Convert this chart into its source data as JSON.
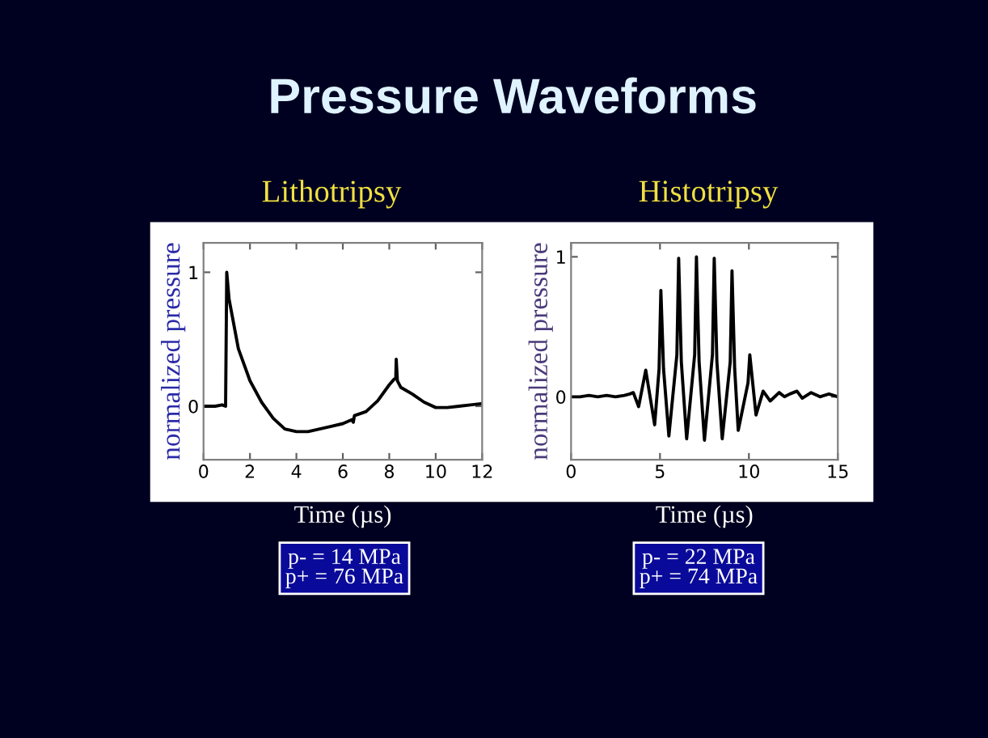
{
  "chart_data": [
    {
      "type": "line",
      "title": "Lithotripsy",
      "xlabel": "Time (µs)",
      "ylabel": "normalized pressure",
      "annotations": [
        "Pressure Waveforms",
        "p- = 14 MPa\np+ = 76 MPa"
      ],
      "xlim": [
        0,
        12
      ],
      "ylim": [
        -0.4,
        1.22
      ],
      "xticks": [
        0,
        2,
        4,
        6,
        8,
        10,
        12
      ],
      "yticks": [
        0,
        1
      ],
      "x": [
        0,
        0.5,
        0.8,
        0.95,
        1.0,
        1.1,
        1.5,
        2,
        2.5,
        3,
        3.5,
        4,
        4.5,
        5,
        5.5,
        6,
        6.4,
        6.45,
        6.5,
        7,
        7.5,
        8,
        8.2,
        8.28,
        8.3,
        8.35,
        8.5,
        9,
        9.5,
        10,
        10.5,
        11,
        11.5,
        12
      ],
      "series": [
        {
          "color": "#000000",
          "values": [
            0,
            0,
            0.01,
            0,
            1.0,
            0.8,
            0.43,
            0.19,
            0.03,
            -0.09,
            -0.17,
            -0.19,
            -0.19,
            -0.17,
            -0.15,
            -0.13,
            -0.1,
            -0.12,
            -0.07,
            -0.04,
            0.04,
            0.16,
            0.2,
            0.21,
            0.35,
            0.19,
            0.14,
            0.09,
            0.03,
            -0.01,
            -0.01,
            0,
            0.01,
            0.02
          ]
        }
      ]
    },
    {
      "type": "line",
      "title": "Histotripsy",
      "xlabel": "Time (µs)",
      "ylabel": "normalized pressure",
      "annotations": [
        "p- = 22 MPa\np+ = 74 MPa"
      ],
      "xlim": [
        0,
        15
      ],
      "ylim": [
        -0.45,
        1.1
      ],
      "xticks": [
        0,
        5,
        10,
        15
      ],
      "yticks": [
        0,
        1
      ],
      "x": [
        0,
        0.5,
        1,
        1.5,
        2,
        2.5,
        3,
        3.3,
        3.5,
        3.8,
        4.2,
        4.7,
        4.95,
        5.05,
        5.2,
        5.5,
        5.95,
        6.05,
        6.2,
        6.5,
        6.95,
        7.05,
        7.2,
        7.5,
        7.95,
        8.05,
        8.2,
        8.5,
        8.95,
        9.05,
        9.2,
        9.4,
        9.95,
        10.05,
        10.4,
        10.8,
        11.2,
        11.7,
        12,
        12.3,
        12.7,
        13,
        13.5,
        14,
        14.5,
        15
      ],
      "series": [
        {
          "color": "#000000",
          "values": [
            0,
            0,
            0.01,
            0,
            0.01,
            0,
            0.01,
            0.02,
            0.03,
            -0.07,
            0.19,
            -0.2,
            0.2,
            0.76,
            0.2,
            -0.28,
            0.3,
            0.99,
            0.25,
            -0.3,
            0.3,
            1.0,
            0.25,
            -0.31,
            0.3,
            0.99,
            0.25,
            -0.3,
            0.25,
            0.9,
            0.2,
            -0.24,
            0.1,
            0.3,
            -0.13,
            0.04,
            -0.03,
            0.03,
            0,
            0.02,
            0.04,
            -0.01,
            0.03,
            0,
            0.02,
            0
          ]
        }
      ]
    }
  ]
}
